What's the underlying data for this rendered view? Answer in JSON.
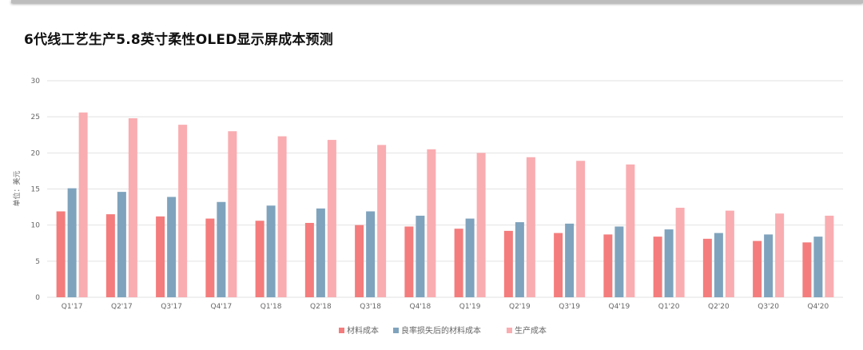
{
  "chart_data": {
    "type": "bar",
    "title": "6代线工艺生产5.8英寸柔性OLED显示屏成本预测",
    "xlabel": "",
    "ylabel": "单位：美元",
    "ylim": [
      0,
      30
    ],
    "yticks": [
      0,
      5,
      10,
      15,
      20,
      25,
      30
    ],
    "grid": true,
    "legend_position": "bottom",
    "categories": [
      "Q1'17",
      "Q2'17",
      "Q3'17",
      "Q4'17",
      "Q1'18",
      "Q2'18",
      "Q3'18",
      "Q4'18",
      "Q1'19",
      "Q2'19",
      "Q3'19",
      "Q4'19",
      "Q1'20",
      "Q2'20",
      "Q3'20",
      "Q4'20"
    ],
    "series": [
      {
        "name": "材料成本",
        "color": "#f47c7c",
        "values": [
          11.9,
          11.5,
          11.2,
          10.9,
          10.6,
          10.3,
          10.0,
          9.8,
          9.5,
          9.2,
          8.9,
          8.7,
          8.4,
          8.1,
          7.8,
          7.6
        ]
      },
      {
        "name": "良率损失后的材料成本",
        "color": "#7fa3bd",
        "values": [
          15.1,
          14.6,
          13.9,
          13.2,
          12.7,
          12.3,
          11.9,
          11.3,
          10.9,
          10.4,
          10.2,
          9.8,
          9.4,
          8.9,
          8.7,
          8.4
        ]
      },
      {
        "name": "生产成本",
        "color": "#f9adb1",
        "values": [
          25.6,
          24.8,
          23.9,
          23.0,
          22.3,
          21.8,
          21.1,
          20.5,
          20.0,
          19.4,
          18.9,
          18.4,
          12.4,
          12.0,
          11.6,
          11.3
        ]
      }
    ]
  }
}
